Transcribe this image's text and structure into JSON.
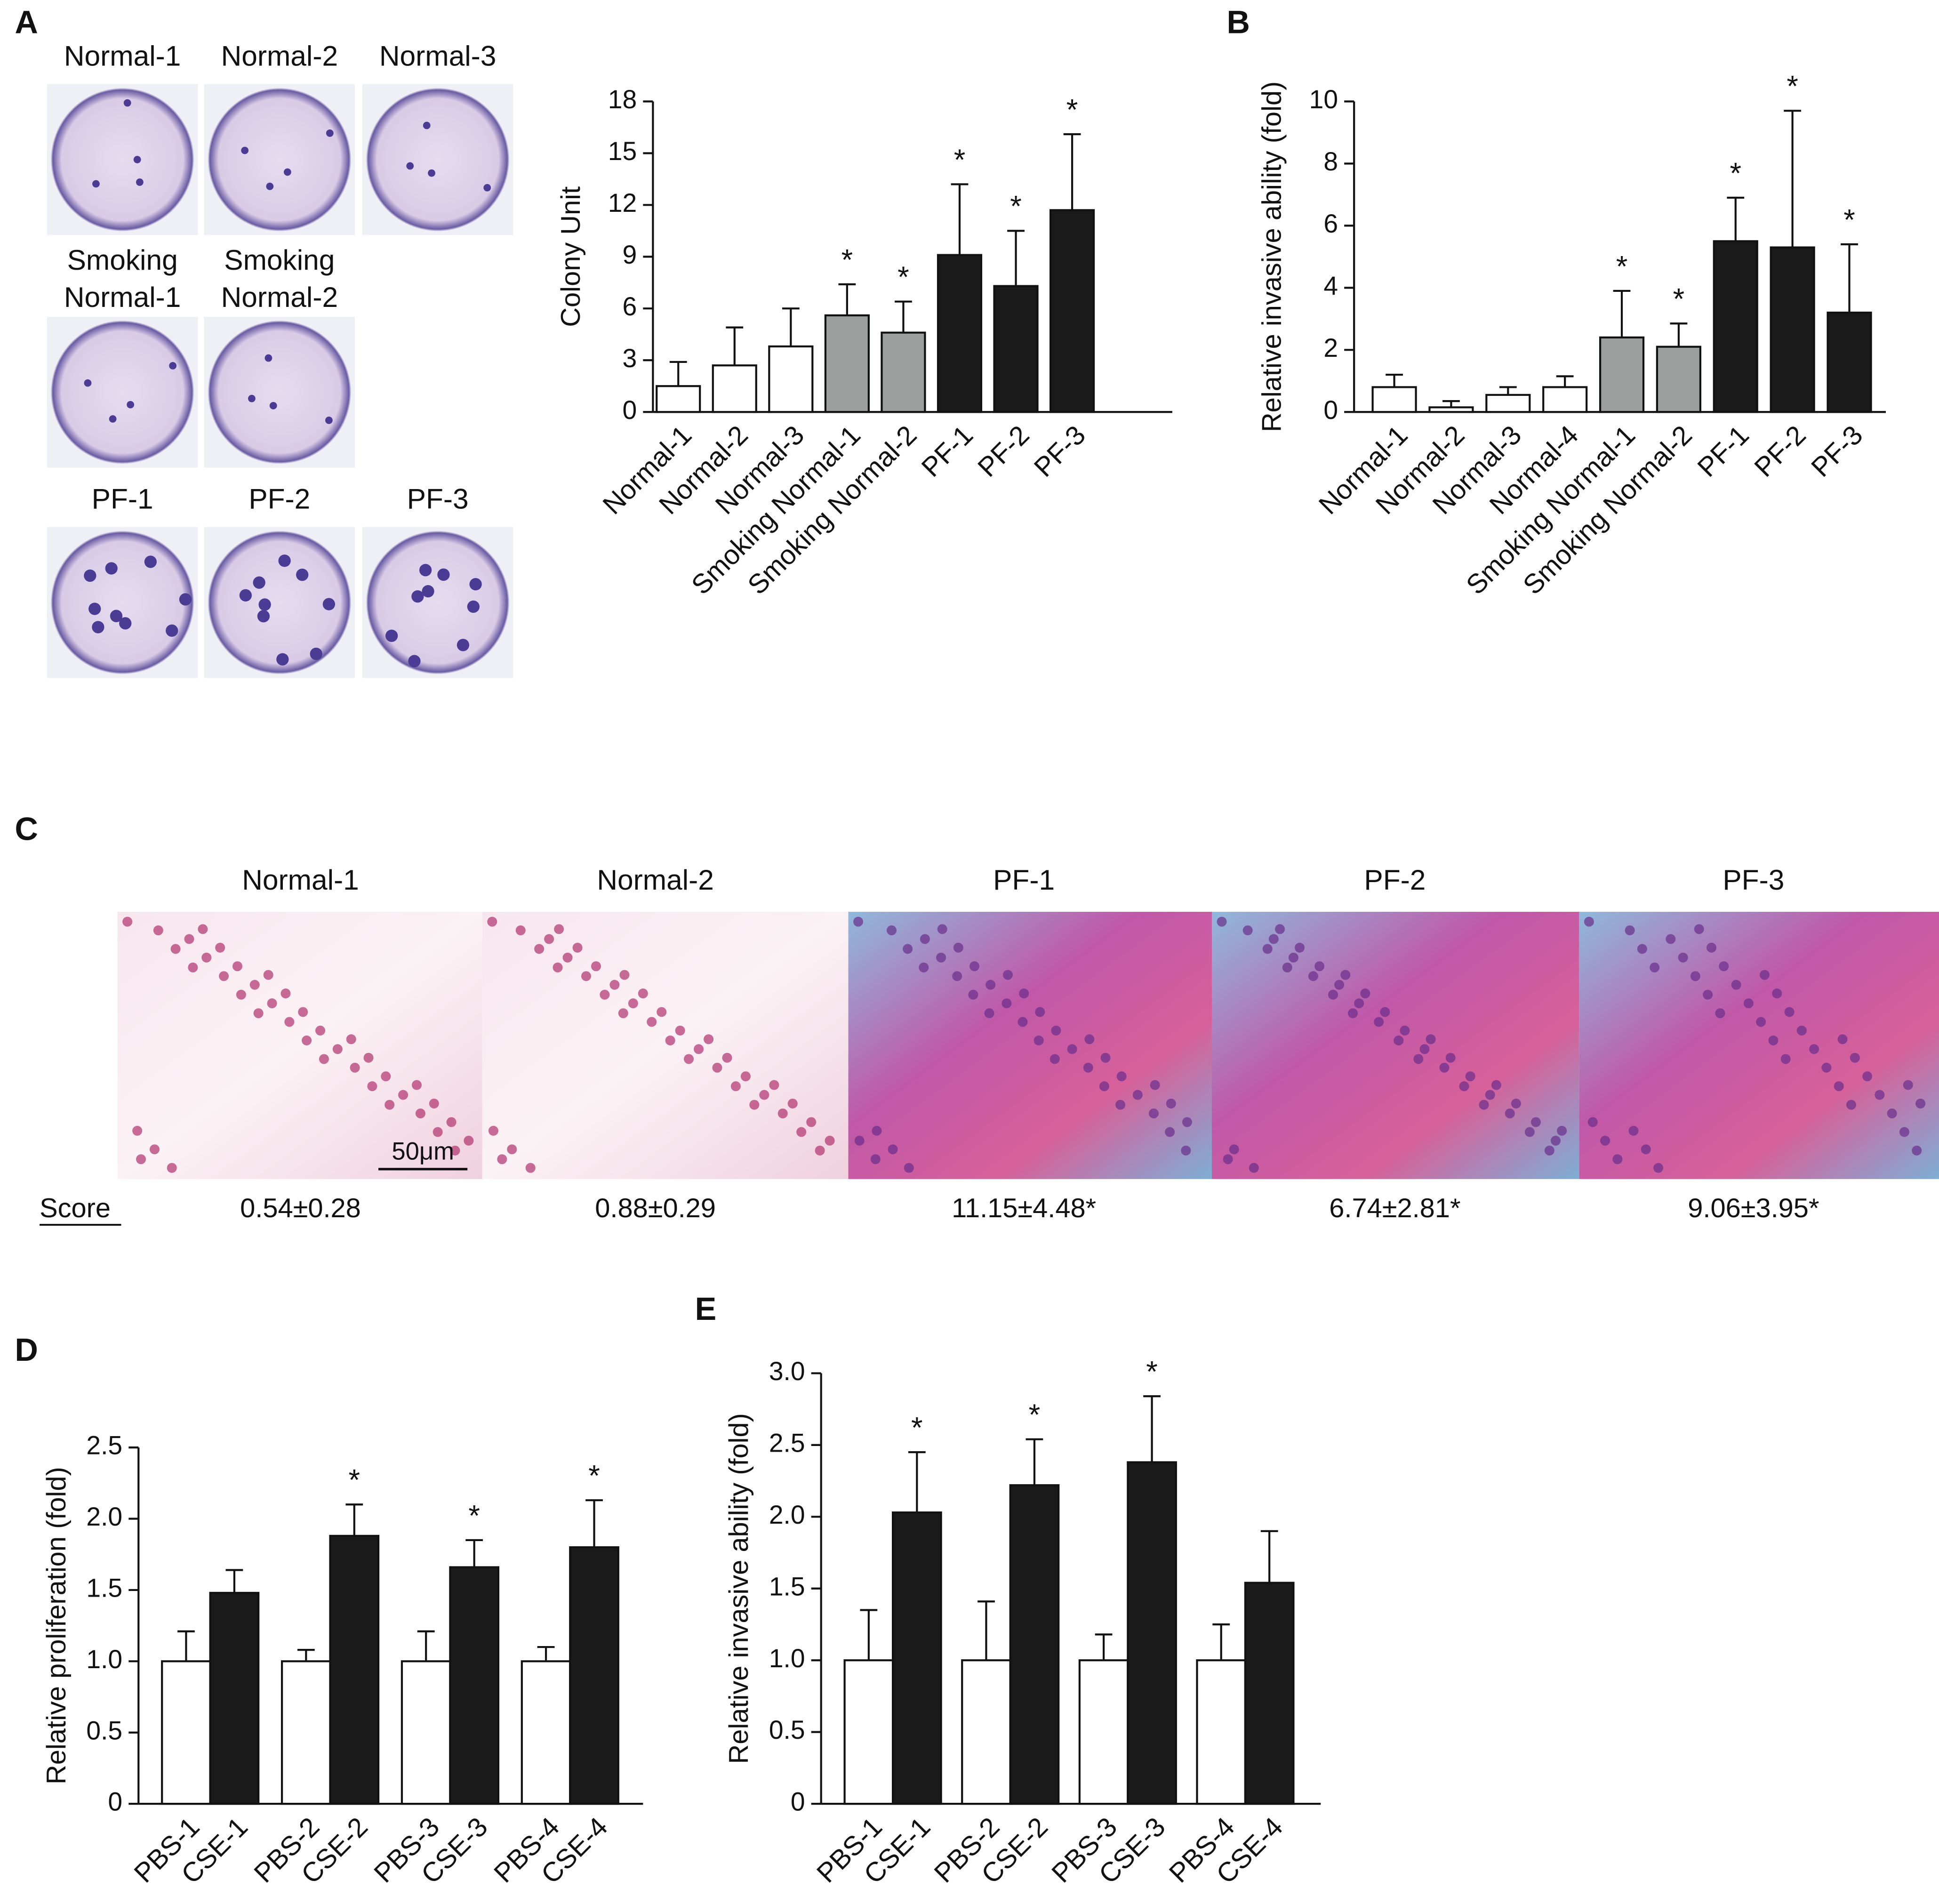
{
  "panel_labels": [
    "A",
    "B",
    "C",
    "D",
    "E"
  ],
  "colony_images": {
    "rows": [
      [
        "Normal-1",
        "Normal-2",
        "Normal-3"
      ],
      [
        [
          "Smoking",
          "Normal-1"
        ],
        [
          "Smoking",
          "Normal-2"
        ]
      ],
      [
        "PF-1",
        "PF-2",
        "PF-3"
      ]
    ]
  },
  "histology": {
    "labels": [
      "Normal-1",
      "Normal-2",
      "PF-1",
      "PF-2",
      "PF-3"
    ],
    "score_label": "Score",
    "scores": [
      "0.54±0.28",
      "0.88±0.29",
      "11.15±4.48*",
      "6.74±2.81*",
      "9.06±3.95*"
    ],
    "scale_bar": "50μm"
  },
  "chart_data": [
    {
      "type": "bar",
      "y_label": "Colony Unit",
      "categories": [
        "Normal-1",
        "Normal-2",
        "Normal-3",
        "Smoking Normal-1",
        "Smoking Normal-2",
        "PF-1",
        "PF-2",
        "PF-3"
      ],
      "values": [
        1.5,
        2.7,
        3.8,
        5.6,
        4.6,
        9.1,
        7.3,
        11.7
      ],
      "errors": [
        1.4,
        2.2,
        2.2,
        1.8,
        1.8,
        4.1,
        3.2,
        4.4
      ],
      "colors": [
        "#ffffff",
        "#ffffff",
        "#ffffff",
        "#9b9f9e",
        "#9b9f9e",
        "#1a1a1a",
        "#1a1a1a",
        "#1a1a1a"
      ],
      "significance": [
        null,
        null,
        null,
        "*",
        "*",
        "*",
        "*",
        "*"
      ],
      "ylim": [
        0,
        18
      ],
      "yticks": [
        0,
        3,
        6,
        9,
        12,
        15,
        18
      ]
    },
    {
      "type": "bar",
      "y_label": "Relative invasive ability (fold)",
      "categories": [
        "Normal-1",
        "Normal-2",
        "Normal-3",
        "Normal-4",
        "Smoking Normal-1",
        "Smoking Normal-2",
        "PF-1",
        "PF-2",
        "PF-3"
      ],
      "values": [
        0.8,
        0.15,
        0.55,
        0.8,
        2.4,
        2.1,
        5.5,
        5.3,
        3.2
      ],
      "errors": [
        0.4,
        0.2,
        0.25,
        0.35,
        1.5,
        0.75,
        1.4,
        4.4,
        2.2
      ],
      "colors": [
        "#ffffff",
        "#ffffff",
        "#ffffff",
        "#ffffff",
        "#9b9f9e",
        "#9b9f9e",
        "#1a1a1a",
        "#1a1a1a",
        "#1a1a1a"
      ],
      "significance": [
        null,
        null,
        null,
        null,
        "*",
        "*",
        "*",
        "*",
        "*"
      ],
      "ylim": [
        0,
        10
      ],
      "yticks": [
        0,
        2,
        4,
        6,
        8,
        10
      ]
    },
    {
      "type": "bar",
      "y_label": "Relative proliferation (fold)",
      "categories": [
        "PBS-1",
        "CSE-1",
        "PBS-2",
        "CSE-2",
        "PBS-3",
        "CSE-3",
        "PBS-4",
        "CSE-4"
      ],
      "values": [
        1,
        1.48,
        1,
        1.88,
        1,
        1.66,
        1,
        1.8
      ],
      "errors": [
        0.21,
        0.16,
        0.08,
        0.22,
        0.21,
        0.19,
        0.1,
        0.33
      ],
      "colors": [
        "#ffffff",
        "#1a1a1a",
        "#ffffff",
        "#1a1a1a",
        "#ffffff",
        "#1a1a1a",
        "#ffffff",
        "#1a1a1a"
      ],
      "significance": [
        null,
        null,
        null,
        "*",
        null,
        "*",
        null,
        "*"
      ],
      "ylim": [
        0,
        2.5
      ],
      "yticks": [
        0,
        0.5,
        {
          "value": 1,
          "label": "1.0"
        },
        1.5,
        {
          "value": 2,
          "label": "2.0"
        },
        2.5
      ]
    },
    {
      "type": "bar",
      "y_label": "Relative invasive ability (fold)",
      "categories": [
        "PBS-1",
        "CSE-1",
        "PBS-2",
        "CSE-2",
        "PBS-3",
        "CSE-3",
        "PBS-4",
        "CSE-4"
      ],
      "values": [
        1,
        2.03,
        1,
        2.22,
        1,
        2.38,
        1,
        1.54
      ],
      "errors": [
        0.35,
        0.42,
        0.41,
        0.32,
        0.18,
        0.46,
        0.25,
        0.36
      ],
      "colors": [
        "#ffffff",
        "#1a1a1a",
        "#ffffff",
        "#1a1a1a",
        "#ffffff",
        "#1a1a1a",
        "#ffffff",
        "#1a1a1a"
      ],
      "significance": [
        null,
        "*",
        null,
        "*",
        null,
        "*",
        null,
        null
      ],
      "ylim": [
        0,
        3
      ],
      "yticks": [
        0,
        0.5,
        {
          "value": 1,
          "label": "1.0"
        },
        1.5,
        {
          "value": 2,
          "label": "2.0"
        },
        2.5,
        {
          "value": 3,
          "label": "3.0"
        }
      ]
    }
  ]
}
